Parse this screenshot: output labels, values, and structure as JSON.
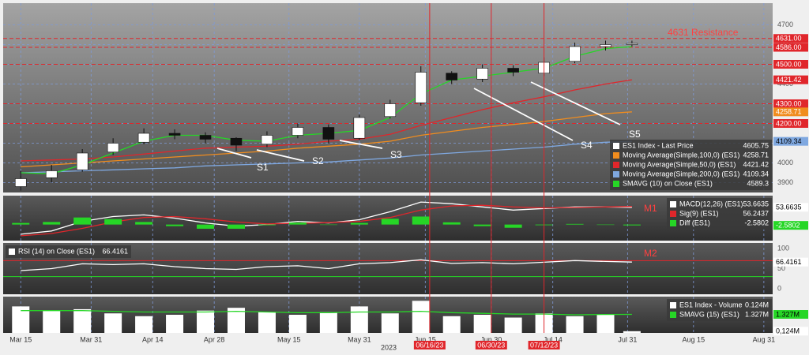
{
  "chart_data": [
    {
      "type": "candlestick",
      "legend": "lower right",
      "grid": true,
      "xlim": [
        "2023-03-11",
        "2023-09-02"
      ],
      "ylim": [
        3850,
        4810
      ],
      "yticks": [
        3900,
        4000,
        4100,
        4200,
        4300,
        4400,
        4500,
        4600,
        4700
      ],
      "x": [
        "2023-03-15",
        "2023-03-22",
        "2023-03-29",
        "2023-04-05",
        "2023-04-12",
        "2023-04-19",
        "2023-04-26",
        "2023-05-03",
        "2023-05-10",
        "2023-05-17",
        "2023-05-24",
        "2023-05-31",
        "2023-06-07",
        "2023-06-14",
        "2023-06-21",
        "2023-06-28",
        "2023-07-05",
        "2023-07-12",
        "2023-07-19",
        "2023-07-26",
        "2023-08-01"
      ],
      "candles": {
        "name": "ES1 Index - Last Price",
        "color": "#ffffff",
        "legend_value": 4605.75,
        "open": [
          3880,
          3925,
          3965,
          4055,
          4105,
          4150,
          4140,
          4125,
          4095,
          4140,
          4180,
          4125,
          4235,
          4305,
          4455,
          4425,
          4480,
          4455,
          4515,
          4590,
          4600
        ],
        "high": [
          3960,
          3990,
          4070,
          4125,
          4175,
          4170,
          4155,
          4130,
          4160,
          4200,
          4195,
          4245,
          4320,
          4490,
          4465,
          4500,
          4495,
          4535,
          4610,
          4620,
          4620
        ],
        "low": [
          3860,
          3900,
          3955,
          4040,
          4095,
          4120,
          4100,
          4060,
          4080,
          4125,
          4100,
          4115,
          4225,
          4290,
          4400,
          4410,
          4440,
          4440,
          4505,
          4570,
          4590
        ],
        "close": [
          3920,
          3960,
          4050,
          4100,
          4150,
          4140,
          4120,
          4090,
          4140,
          4180,
          4120,
          4230,
          4300,
          4460,
          4420,
          4480,
          4460,
          4510,
          4590,
          4600,
          4605.75
        ]
      },
      "series": [
        {
          "name": "Moving Average(Simple,100,0) (ES1)",
          "color": "#f08c1e",
          "legend_value": 4258.71,
          "tag": true,
          "values": [
            3980,
            3990,
            4000,
            4010,
            4020,
            4030,
            4040,
            4050,
            4060,
            4075,
            4085,
            4095,
            4110,
            4140,
            4160,
            4180,
            4195,
            4210,
            4230,
            4250,
            4258.71
          ]
        },
        {
          "name": "Moving Average(Simple,50,0) (ES1)",
          "color": "#e0262b",
          "legend_value": 4421.42,
          "tag": true,
          "values": [
            4010,
            4015,
            4020,
            4030,
            4045,
            4060,
            4075,
            4080,
            4085,
            4095,
            4110,
            4120,
            4145,
            4190,
            4230,
            4270,
            4305,
            4335,
            4370,
            4400,
            4421.42
          ]
        },
        {
          "name": "Moving Average(Simple,200,0) (ES1)",
          "color": "#7fa8e0",
          "legend_value": 4109.34,
          "tag": true,
          "values": [
            3950,
            3955,
            3960,
            3965,
            3970,
            3975,
            3985,
            3990,
            3995,
            4000,
            4005,
            4015,
            4025,
            4040,
            4050,
            4060,
            4070,
            4080,
            4095,
            4105,
            4109.34
          ]
        },
        {
          "name": "SMAVG (10)  on Close (ES1)",
          "color": "#26d626",
          "legend_value": 4589.3,
          "values": [
            3950,
            3945,
            3990,
            4050,
            4110,
            4140,
            4140,
            4115,
            4110,
            4140,
            4150,
            4165,
            4230,
            4350,
            4420,
            4440,
            4460,
            4480,
            4540,
            4580,
            4589.3
          ]
        }
      ],
      "levels": [
        {
          "value": 4631,
          "label": "4631.00",
          "color": "#e0262b"
        },
        {
          "value": 4586,
          "label": "4586.00",
          "color": "#e0262b"
        },
        {
          "value": 4500,
          "label": "4500.00",
          "color": "#e0262b"
        },
        {
          "value": 4300,
          "label": "4300.00",
          "color": "#e0262b"
        },
        {
          "value": 4200,
          "label": "4200.00",
          "color": "#e0262b"
        }
      ],
      "annotations": [
        "4631 Resistance",
        "S1",
        "S2",
        "S3",
        "S4",
        "S5"
      ]
    },
    {
      "type": "line",
      "legend": "upper right",
      "xlim": [
        "2023-03-11",
        "2023-09-02"
      ],
      "ylim": [
        -50,
        90
      ],
      "x": [
        "2023-03-15",
        "2023-03-22",
        "2023-03-29",
        "2023-04-05",
        "2023-04-12",
        "2023-04-19",
        "2023-04-26",
        "2023-05-03",
        "2023-05-10",
        "2023-05-17",
        "2023-05-24",
        "2023-05-31",
        "2023-06-07",
        "2023-06-14",
        "2023-06-21",
        "2023-06-28",
        "2023-07-05",
        "2023-07-12",
        "2023-07-19",
        "2023-07-26",
        "2023-08-01"
      ],
      "series": [
        {
          "name": "MACD(12,26) (ES1)",
          "color": "#ffffff",
          "legend_value": 53.6635,
          "tag": true,
          "values": [
            -30,
            -20,
            10,
            25,
            30,
            20,
            5,
            -5,
            0,
            10,
            5,
            15,
            40,
            70,
            65,
            55,
            45,
            50,
            55,
            55,
            53.6635
          ]
        },
        {
          "name": "Sig(9) (ES1)",
          "color": "#e0262b",
          "legend_value": 56.2437,
          "values": [
            -35,
            -28,
            -12,
            8,
            22,
            25,
            18,
            8,
            2,
            4,
            6,
            10,
            22,
            45,
            58,
            60,
            55,
            52,
            53,
            55,
            56.2437
          ]
        },
        {
          "name": "Diff (ES1)",
          "color": "#26d626",
          "legend_value": -2.5802,
          "tag": true,
          "kind": "bar",
          "values": [
            5,
            8,
            22,
            17,
            8,
            -5,
            -13,
            -13,
            -2,
            6,
            -1,
            5,
            18,
            25,
            7,
            -5,
            -10,
            -2,
            2,
            0,
            -2.5802
          ]
        }
      ],
      "annotations": [
        "M1"
      ]
    },
    {
      "type": "line",
      "legend": "upper left",
      "xlim": [
        "2023-03-11",
        "2023-09-02"
      ],
      "ylim": [
        -14,
        114
      ],
      "yticks": [
        0,
        50,
        100
      ],
      "x": [
        "2023-03-15",
        "2023-03-22",
        "2023-03-29",
        "2023-04-05",
        "2023-04-12",
        "2023-04-19",
        "2023-04-26",
        "2023-05-03",
        "2023-05-10",
        "2023-05-17",
        "2023-05-24",
        "2023-05-31",
        "2023-06-07",
        "2023-06-14",
        "2023-06-21",
        "2023-06-28",
        "2023-07-05",
        "2023-07-12",
        "2023-07-19",
        "2023-07-26",
        "2023-08-01"
      ],
      "series": [
        {
          "name": "RSI (14)   on Close (ES1)",
          "color": "#ffffff",
          "legend_value": 66.4161,
          "tag": true,
          "values": [
            45,
            50,
            62,
            60,
            62,
            55,
            50,
            48,
            55,
            57,
            50,
            62,
            65,
            72,
            63,
            65,
            62,
            66,
            70,
            68,
            66.4161
          ]
        }
      ],
      "levels": [
        {
          "value": 70,
          "color": "#e0262b"
        },
        {
          "value": 30,
          "color": "#26d626"
        }
      ],
      "annotations": [
        "M2"
      ]
    },
    {
      "type": "bar",
      "legend": "upper right",
      "xlabel": "2023",
      "xlim": [
        "2023-03-11",
        "2023-09-02"
      ],
      "ylim": [
        0,
        2.6
      ],
      "xticks": [
        {
          "value": "2023-03-15",
          "label": "Mar 15"
        },
        {
          "value": "2023-03-31",
          "label": "Mar 31"
        },
        {
          "value": "2023-04-14",
          "label": "Apr 14"
        },
        {
          "value": "2023-04-28",
          "label": "Apr 28"
        },
        {
          "value": "2023-05-15",
          "label": "May 15"
        },
        {
          "value": "2023-05-31",
          "label": "May 31"
        },
        {
          "value": "2023-06-15",
          "label": "Jun 15"
        },
        {
          "value": "2023-06-30",
          "label": "Jun 30"
        },
        {
          "value": "2023-07-14",
          "label": "Jul 14"
        },
        {
          "value": "2023-07-31",
          "label": "Jul 31"
        },
        {
          "value": "2023-08-15",
          "label": "Aug 15"
        },
        {
          "value": "2023-08-31",
          "label": "Aug 31"
        }
      ],
      "markers": [
        {
          "date": "2023-06-16",
          "label": "06/16/23"
        },
        {
          "date": "2023-06-30",
          "label": "06/30/23"
        },
        {
          "date": "2023-07-12",
          "label": "07/12/23"
        }
      ],
      "x": [
        "2023-03-15",
        "2023-03-22",
        "2023-03-29",
        "2023-04-05",
        "2023-04-12",
        "2023-04-19",
        "2023-04-26",
        "2023-05-03",
        "2023-05-10",
        "2023-05-17",
        "2023-05-24",
        "2023-05-31",
        "2023-06-07",
        "2023-06-14",
        "2023-06-21",
        "2023-06-28",
        "2023-07-05",
        "2023-07-12",
        "2023-07-19",
        "2023-07-26",
        "2023-08-01"
      ],
      "series": [
        {
          "name": "ES1 Index - Volume",
          "color": "#ffffff",
          "kind": "bar",
          "legend_value": {
            "value": 0.124,
            "label": "0.124M"
          },
          "values": [
            1.9,
            1.6,
            1.7,
            1.4,
            1.2,
            1.3,
            1.6,
            1.8,
            1.5,
            1.3,
            1.5,
            1.9,
            1.4,
            2.3,
            1.2,
            1.3,
            1.1,
            1.4,
            1.2,
            1.3,
            0.124
          ]
        },
        {
          "name": "SMAVG (15)  (ES1)",
          "color": "#26d626",
          "legend_value": {
            "value": 1.327,
            "label": "1.327M"
          },
          "values": [
            1.6,
            1.6,
            1.6,
            1.55,
            1.5,
            1.5,
            1.5,
            1.55,
            1.5,
            1.45,
            1.45,
            1.5,
            1.5,
            1.55,
            1.45,
            1.4,
            1.35,
            1.35,
            1.3,
            1.32,
            1.327
          ]
        }
      ],
      "tags": [
        {
          "value": 1.327,
          "label": "1.327M",
          "color": "#26d626"
        },
        {
          "value": 0.124,
          "label": "0,124M",
          "color": "#ffffff"
        }
      ]
    }
  ]
}
